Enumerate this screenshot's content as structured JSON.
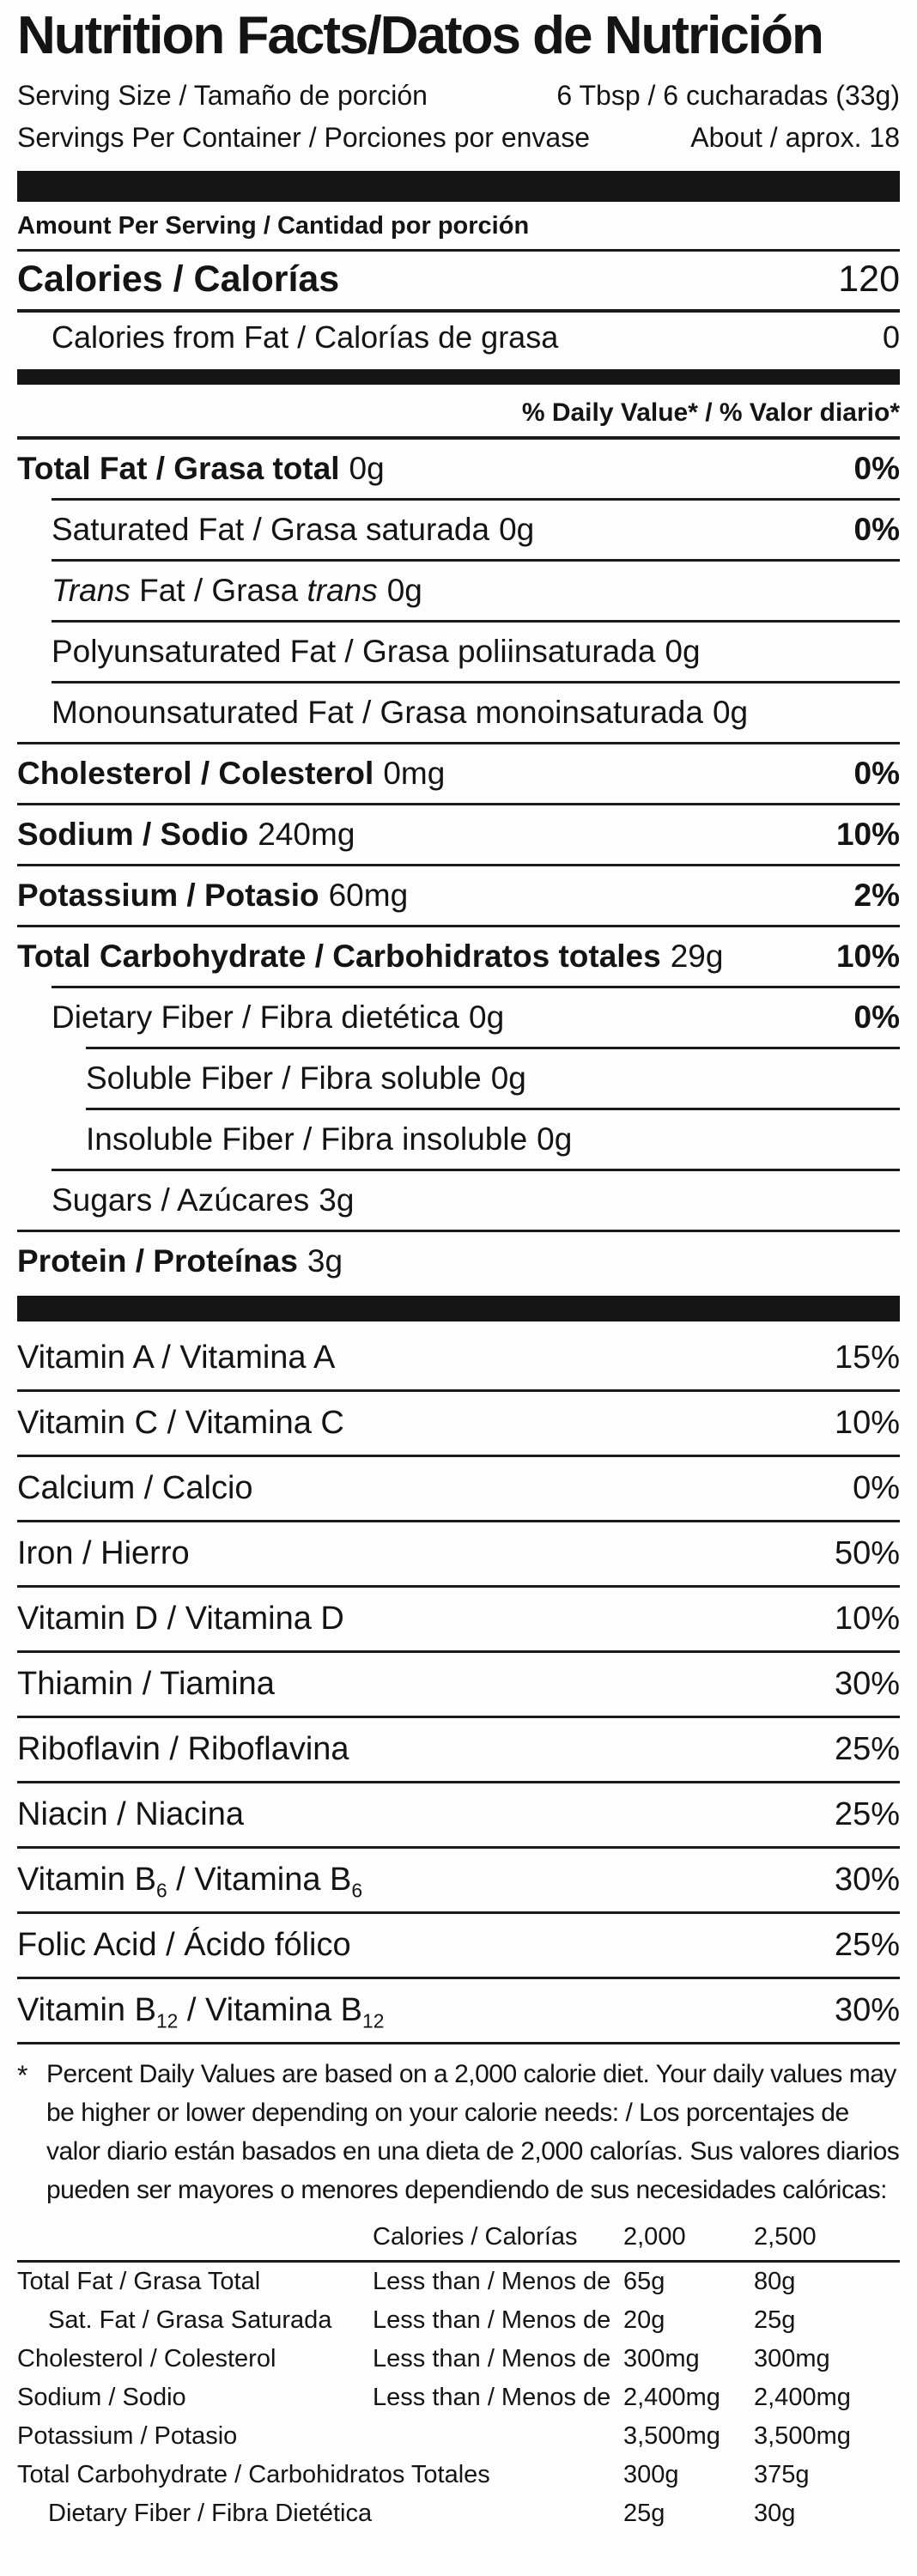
{
  "title": "Nutrition Facts/Datos de Nutrición",
  "serving_info": {
    "serving_size_label": "Serving Size / Tamaño de porción",
    "serving_size_value": "6 Tbsp / 6 cucharadas (33g)",
    "servings_per_container_label": "Servings Per Container / Porciones por envase",
    "servings_per_container_value": "About / aprox. 18"
  },
  "amount_per_serving_header": "Amount Per Serving / Cantidad por porción",
  "calories_row": {
    "label": "Calories / Calorías",
    "value": "120"
  },
  "calories_from_fat_row": {
    "label": "Calories from Fat / Calorías de grasa",
    "value": "0"
  },
  "daily_value_header": "% Daily Value* / % Valor diario*",
  "nutrients": [
    {
      "name": "Total Fat / Grasa total",
      "amount": "0g",
      "dv": "0%"
    },
    {
      "name": "Saturated Fat / Grasa saturada",
      "amount": "0g",
      "dv": "0%"
    },
    {
      "name_italic_1": "Trans",
      "name_mid": " Fat / Grasa ",
      "name_italic_2": "trans",
      "amount": "0g",
      "dv": ""
    },
    {
      "name": "Polyunsaturated Fat / Grasa poliinsaturada",
      "amount": "0g",
      "dv": ""
    },
    {
      "name": "Monounsaturated Fat / Grasa monoinsaturada",
      "amount": "0g",
      "dv": ""
    },
    {
      "name": "Cholesterol / Colesterol",
      "amount": "0mg",
      "dv": "0%"
    },
    {
      "name": "Sodium / Sodio",
      "amount": "240mg",
      "dv": "10%"
    },
    {
      "name": "Potassium / Potasio",
      "amount": "60mg",
      "dv": "2%"
    },
    {
      "name": "Total Carbohydrate / Carbohidratos totales",
      "amount": "29g",
      "dv": "10%"
    },
    {
      "name": "Dietary Fiber / Fibra dietética",
      "amount": "0g",
      "dv": "0%"
    },
    {
      "name": "Soluble Fiber / Fibra soluble",
      "amount": "0g",
      "dv": ""
    },
    {
      "name": "Insoluble Fiber / Fibra insoluble",
      "amount": "0g",
      "dv": ""
    },
    {
      "name": "Sugars / Azúcares",
      "amount": "3g",
      "dv": ""
    },
    {
      "name": "Protein / Proteínas",
      "amount": "3g",
      "dv": ""
    }
  ],
  "vitamins": [
    {
      "name": "Vitamin A / Vitamina A",
      "dv": "15%"
    },
    {
      "name": "Vitamin C / Vitamina C",
      "dv": "10%"
    },
    {
      "name": "Calcium / Calcio",
      "dv": "0%"
    },
    {
      "name": "Iron / Hierro",
      "dv": "50%"
    },
    {
      "name": "Vitamin D / Vitamina D",
      "dv": "10%"
    },
    {
      "name": "Thiamin / Tiamina",
      "dv": "30%"
    },
    {
      "name": "Riboflavin / Riboflavina",
      "dv": "25%"
    },
    {
      "name": "Niacin / Niacina",
      "dv": "25%"
    },
    {
      "name_pre": "Vitamin B",
      "sub1": "6",
      "name_mid": " / Vitamina B",
      "sub2": "6",
      "dv": "30%"
    },
    {
      "name": "Folic Acid / Ácido fólico",
      "dv": "25%"
    },
    {
      "name_pre": "Vitamin B",
      "sub1": "12",
      "name_mid": " / Vitamina B",
      "sub2": "12",
      "dv": "30%"
    }
  ],
  "footnote": {
    "asterisk": "*",
    "text": "Percent Daily Values are based on a 2,000 calorie diet. Your daily values may be higher or lower depending on your calorie needs: / Los porcentajes de valor diario están basados en una dieta de 2,000 calorías. Sus valores diarios pueden ser mayores o menores dependiendo de sus necesidades calóricas:"
  },
  "reference_table": {
    "header": {
      "col_label": "Calories / Calorías",
      "col_2000": "2,000",
      "col_2500": "2,500"
    },
    "rows": [
      {
        "label": "Total Fat / Grasa Total",
        "constraint": "Less than / Menos de",
        "v2000": "65g",
        "v2500": "80g"
      },
      {
        "label": "Sat. Fat / Grasa Saturada",
        "constraint": "Less than / Menos de",
        "v2000": "20g",
        "v2500": "25g"
      },
      {
        "label": "Cholesterol / Colesterol",
        "constraint": "Less than / Menos de",
        "v2000": "300mg",
        "v2500": "300mg"
      },
      {
        "label": "Sodium / Sodio",
        "constraint": "Less than / Menos de",
        "v2000": "2,400mg",
        "v2500": "2,400mg"
      },
      {
        "label": "Potassium / Potasio",
        "constraint": "",
        "v2000": "3,500mg",
        "v2500": "3,500mg"
      },
      {
        "label": "Total Carbohydrate / Carbohidratos Totales",
        "constraint": "",
        "v2000": "300g",
        "v2500": "375g"
      },
      {
        "label": "Dietary Fiber / Fibra Dietética",
        "constraint": "",
        "v2000": "25g",
        "v2500": "30g"
      }
    ]
  },
  "colors": {
    "text": "#141414",
    "background": "#fdfdfd",
    "rule": "#1b1b1b"
  }
}
